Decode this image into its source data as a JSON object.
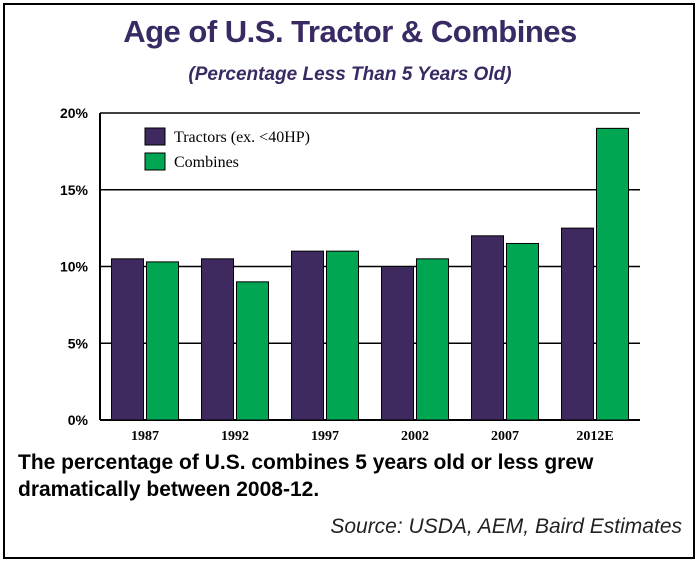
{
  "chart_data": {
    "type": "bar",
    "title": "Age of U.S. Tractor & Combines",
    "subtitle": "(Percentage Less Than 5 Years Old)",
    "categories": [
      "1987",
      "1992",
      "1997",
      "2002",
      "2007",
      "2012E"
    ],
    "series": [
      {
        "name": "Tractors (ex. <40HP)",
        "color": "#3f2a5f",
        "values": [
          10.5,
          10.5,
          11.0,
          10.0,
          12.0,
          12.5
        ]
      },
      {
        "name": "Combines",
        "color": "#00a651",
        "values": [
          10.3,
          9.0,
          11.0,
          10.5,
          11.5,
          19.0
        ]
      }
    ],
    "ylim": [
      0,
      20
    ],
    "yticks": [
      0,
      5,
      10,
      15,
      20
    ],
    "ytick_labels": [
      "0%",
      "5%",
      "10%",
      "15%",
      "20%"
    ],
    "grid": true,
    "legend_position": "top-left"
  },
  "caption": "The percentage of U.S. combines 5 years old or less grew dramatically between 2008-12.",
  "source": "Source: USDA, AEM, Baird Estimates"
}
